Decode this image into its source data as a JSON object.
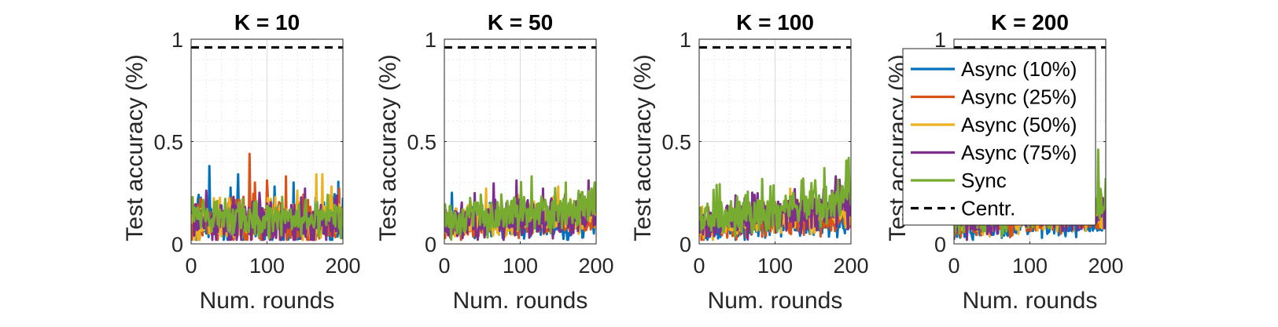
{
  "figure": {
    "xlabel": "Num. rounds",
    "ylabel": "Test accuracy (%)"
  },
  "legend": {
    "placement": "upper-left of fourth panel",
    "entries": [
      {
        "label": "Async (10%)",
        "color": "#0072BD",
        "style": "solid"
      },
      {
        "label": "Async (25%)",
        "color": "#D95319",
        "style": "solid"
      },
      {
        "label": "Async (50%)",
        "color": "#EDB120",
        "style": "solid"
      },
      {
        "label": "Async (75%)",
        "color": "#7E2F8E",
        "style": "solid"
      },
      {
        "label": "Sync",
        "color": "#77AC30",
        "style": "solid"
      },
      {
        "label": "Centr.",
        "color": "#000000",
        "style": "dashed"
      }
    ]
  },
  "chart_data": [
    {
      "type": "line",
      "title": "K = 10",
      "xlabel": "Num. rounds",
      "ylabel": "Test accuracy (%)",
      "xlim": [
        0,
        200
      ],
      "ylim": [
        0,
        1
      ],
      "xticks": [
        "0",
        "100",
        "200"
      ],
      "yticks": [
        "0",
        "0.5",
        "1"
      ],
      "grid": true,
      "centr": 0.96,
      "series": [
        {
          "name": "Async (10%)",
          "color": "#0072BD",
          "base": 0.1,
          "trend": 0.0,
          "spread": 0.1,
          "spikes": [
            [
              24,
              0.38
            ],
            [
              62,
              0.34
            ],
            [
              10,
              0.24
            ],
            [
              110,
              0.28
            ],
            [
              135,
              0.3
            ]
          ]
        },
        {
          "name": "Async (25%)",
          "color": "#D95319",
          "base": 0.1,
          "trend": 0.0,
          "spread": 0.1,
          "spikes": [
            [
              77,
              0.44
            ],
            [
              84,
              0.3
            ],
            [
              100,
              0.31
            ],
            [
              125,
              0.33
            ],
            [
              195,
              0.27
            ]
          ]
        },
        {
          "name": "Async (50%)",
          "color": "#EDB120",
          "base": 0.11,
          "trend": 0.0,
          "spread": 0.09,
          "spikes": [
            [
              165,
              0.34
            ],
            [
              173,
              0.34
            ],
            [
              140,
              0.26
            ],
            [
              185,
              0.28
            ]
          ]
        },
        {
          "name": "Async (75%)",
          "color": "#7E2F8E",
          "base": 0.11,
          "trend": 0.0,
          "spread": 0.09,
          "spikes": [
            [
              20,
              0.26
            ],
            [
              90,
              0.25
            ],
            [
              150,
              0.27
            ]
          ]
        },
        {
          "name": "Sync",
          "color": "#77AC30",
          "base": 0.12,
          "trend": 0.01,
          "spread": 0.07,
          "spikes": [
            [
              45,
              0.22
            ],
            [
              120,
              0.23
            ],
            [
              180,
              0.24
            ]
          ]
        }
      ]
    },
    {
      "type": "line",
      "title": "K = 50",
      "xlabel": "Num. rounds",
      "ylabel": "Test accuracy (%)",
      "xlim": [
        0,
        200
      ],
      "ylim": [
        0,
        1
      ],
      "xticks": [
        "0",
        "100",
        "200"
      ],
      "yticks": [
        "0",
        "0.5",
        "1"
      ],
      "grid": true,
      "centr": 0.96,
      "series": [
        {
          "name": "Async (10%)",
          "color": "#0072BD",
          "base": 0.08,
          "trend": 0.01,
          "spread": 0.05,
          "spikes": [
            [
              10,
              0.25
            ],
            [
              60,
              0.2
            ]
          ]
        },
        {
          "name": "Async (25%)",
          "color": "#D95319",
          "base": 0.09,
          "trend": 0.02,
          "spread": 0.05,
          "spikes": [
            [
              5,
              0.15
            ],
            [
              100,
              0.18
            ]
          ]
        },
        {
          "name": "Async (50%)",
          "color": "#EDB120",
          "base": 0.1,
          "trend": 0.04,
          "spread": 0.07,
          "spikes": [
            [
              55,
              0.27
            ],
            [
              150,
              0.28
            ]
          ]
        },
        {
          "name": "Async (75%)",
          "color": "#7E2F8E",
          "base": 0.1,
          "trend": 0.05,
          "spread": 0.08,
          "spikes": [
            [
              95,
              0.31
            ],
            [
              190,
              0.31
            ],
            [
              130,
              0.27
            ]
          ]
        },
        {
          "name": "Sync",
          "color": "#77AC30",
          "base": 0.12,
          "trend": 0.06,
          "spread": 0.08,
          "spikes": [
            [
              115,
              0.33
            ],
            [
              160,
              0.3
            ],
            [
              198,
              0.3
            ]
          ]
        }
      ]
    },
    {
      "type": "line",
      "title": "K = 100",
      "xlabel": "Num. rounds",
      "ylabel": "Test accuracy (%)",
      "xlim": [
        0,
        200
      ],
      "ylim": [
        0,
        1
      ],
      "xticks": [
        "0",
        "100",
        "200"
      ],
      "yticks": [
        "0",
        "0.5",
        "1"
      ],
      "grid": true,
      "centr": 0.96,
      "series": [
        {
          "name": "Async (10%)",
          "color": "#0072BD",
          "base": 0.08,
          "trend": 0.02,
          "spread": 0.05,
          "spikes": [
            [
              140,
              0.22
            ]
          ]
        },
        {
          "name": "Async (25%)",
          "color": "#D95319",
          "base": 0.09,
          "trend": 0.04,
          "spread": 0.06,
          "spikes": [
            [
              12,
              0.18
            ],
            [
              150,
              0.25
            ]
          ]
        },
        {
          "name": "Async (50%)",
          "color": "#EDB120",
          "base": 0.1,
          "trend": 0.06,
          "spread": 0.07,
          "spikes": [
            [
              120,
              0.27
            ],
            [
              185,
              0.3
            ]
          ]
        },
        {
          "name": "Async (75%)",
          "color": "#7E2F8E",
          "base": 0.1,
          "trend": 0.08,
          "spread": 0.08,
          "spikes": [
            [
              70,
              0.25
            ],
            [
              180,
              0.33
            ]
          ]
        },
        {
          "name": "Sync",
          "color": "#77AC30",
          "base": 0.12,
          "trend": 0.1,
          "spread": 0.09,
          "spikes": [
            [
              165,
              0.37
            ],
            [
              197,
              0.42
            ],
            [
              135,
              0.31
            ]
          ]
        }
      ]
    },
    {
      "type": "line",
      "title": "K = 200",
      "xlabel": "Num. rounds",
      "ylabel": "Test accuracy (%)",
      "xlim": [
        0,
        200
      ],
      "ylim": [
        0,
        1
      ],
      "xticks": [
        "0",
        "100",
        "200"
      ],
      "yticks": [
        "0",
        "0.5",
        "1"
      ],
      "grid": true,
      "centr": 0.96,
      "series": [
        {
          "name": "Async (10%)",
          "color": "#0072BD",
          "base": 0.08,
          "trend": 0.02,
          "spread": 0.05,
          "spikes": [
            [
              150,
              0.18
            ]
          ]
        },
        {
          "name": "Async (25%)",
          "color": "#D95319",
          "base": 0.09,
          "trend": 0.03,
          "spread": 0.05,
          "spikes": [
            [
              196,
              0.2
            ]
          ]
        },
        {
          "name": "Async (50%)",
          "color": "#EDB120",
          "base": 0.1,
          "trend": 0.05,
          "spread": 0.06,
          "spikes": [
            [
              180,
              0.28
            ]
          ]
        },
        {
          "name": "Async (75%)",
          "color": "#7E2F8E",
          "base": 0.1,
          "trend": 0.06,
          "spread": 0.07,
          "spikes": [
            [
              170,
              0.3
            ]
          ]
        },
        {
          "name": "Sync",
          "color": "#77AC30",
          "base": 0.12,
          "trend": 0.09,
          "spread": 0.08,
          "spikes": [
            [
              190,
              0.46
            ],
            [
              175,
              0.34
            ]
          ]
        }
      ]
    }
  ]
}
